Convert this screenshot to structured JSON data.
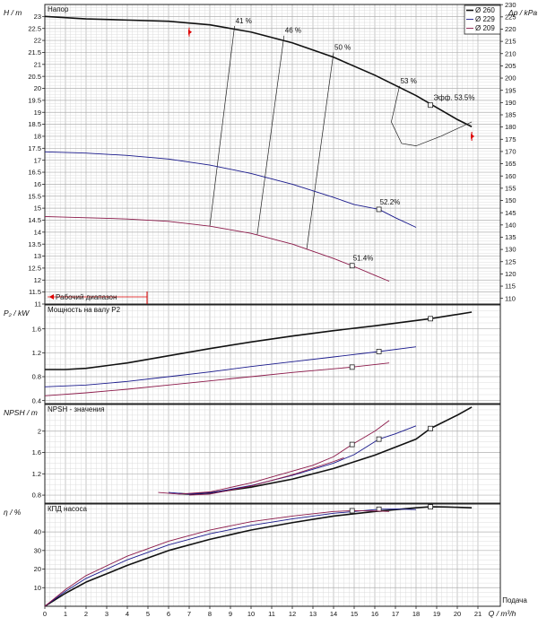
{
  "chart_data": {
    "type": "line",
    "x_axis": {
      "label": "Q / m³/h",
      "extra_label": "Подача",
      "range": [
        0,
        21
      ],
      "ticks": [
        0,
        1,
        2,
        3,
        4,
        5,
        6,
        7,
        8,
        9,
        10,
        11,
        12,
        13,
        14,
        15,
        16,
        17,
        18,
        19,
        20,
        21
      ]
    },
    "legend": {
      "placement": "top-right",
      "entries": [
        {
          "label": "Ø 260",
          "color": "#111111"
        },
        {
          "label": "Ø 229",
          "color": "#1a1a8c"
        },
        {
          "label": "Ø 209",
          "color": "#8c1a4a"
        }
      ]
    },
    "panels": [
      {
        "id": "head",
        "title": "Напор",
        "ylabel": "H / m",
        "ylim": [
          11,
          23.5
        ],
        "yticks": [
          11,
          11.5,
          12,
          12.5,
          13,
          13.5,
          14,
          14.5,
          15,
          15.5,
          16,
          16.5,
          17,
          17.5,
          18,
          18.5,
          19,
          19.5,
          20,
          20.5,
          21,
          21.5,
          22,
          22.5,
          23
        ],
        "right_axis": {
          "label": "Δp / kPa",
          "ticks": [
            110,
            115,
            120,
            125,
            130,
            135,
            140,
            145,
            150,
            155,
            160,
            165,
            170,
            175,
            180,
            185,
            190,
            195,
            200,
            205,
            210,
            215,
            220,
            225,
            230
          ]
        },
        "series": [
          {
            "name": "Ø 260",
            "color": "#111111",
            "width": 1.6,
            "x": [
              0,
              2,
              4,
              6,
              8,
              10,
              12,
              14,
              16,
              18,
              19,
              20,
              20.7
            ],
            "y": [
              23.0,
              22.9,
              22.85,
              22.8,
              22.65,
              22.35,
              21.9,
              21.3,
              20.55,
              19.7,
              19.2,
              18.7,
              18.4
            ],
            "marker": {
              "x": 18.7,
              "y": 19.3
            }
          },
          {
            "name": "Ø 229",
            "color": "#1a1a8c",
            "width": 0.9,
            "x": [
              0,
              2,
              4,
              6,
              8,
              10,
              12,
              14,
              15,
              16.2,
              17,
              18
            ],
            "y": [
              17.35,
              17.3,
              17.2,
              17.05,
              16.8,
              16.45,
              16.0,
              15.45,
              15.15,
              14.95,
              14.6,
              14.2
            ],
            "marker": {
              "x": 16.2,
              "y": 14.95
            }
          },
          {
            "name": "Ø 209",
            "color": "#8c1a4a",
            "width": 0.9,
            "x": [
              0,
              2,
              4,
              6,
              8,
              10,
              12,
              13,
              14,
              14.9,
              16,
              16.7
            ],
            "y": [
              14.65,
              14.6,
              14.55,
              14.45,
              14.25,
              13.95,
              13.5,
              13.2,
              12.9,
              12.6,
              12.2,
              11.95
            ],
            "marker": {
              "x": 14.9,
              "y": 12.6
            }
          }
        ],
        "iso_efficiency": [
          {
            "label": "41 %",
            "x": [
              9.2,
              8.0
            ],
            "y": [
              22.6,
              14.25
            ]
          },
          {
            "label": "46 %",
            "x": [
              11.6,
              10.3
            ],
            "y": [
              22.2,
              13.9
            ]
          },
          {
            "label": "50 %",
            "x": [
              14.0,
              12.7
            ],
            "y": [
              21.5,
              13.3
            ]
          },
          {
            "label": "53 %",
            "x": [
              17.2,
              16.8,
              17.3,
              18.0,
              19.2,
              20.7
            ],
            "y": [
              20.1,
              18.6,
              17.7,
              17.6,
              18.0,
              18.6
            ]
          }
        ],
        "annotations": [
          {
            "text": "41 %",
            "x": 9.2,
            "y": 22.6
          },
          {
            "text": "46 %",
            "x": 11.6,
            "y": 22.2
          },
          {
            "text": "50 %",
            "x": 14.0,
            "y": 21.5
          },
          {
            "text": "53 %",
            "x": 17.2,
            "y": 20.1
          },
          {
            "text": "Эфф.  53.5%",
            "x": 18.8,
            "y": 19.4
          },
          {
            "text": "52.2%",
            "x": 16.2,
            "y": 15.05
          },
          {
            "text": "51.4%",
            "x": 14.9,
            "y": 12.7
          }
        ],
        "range_label": "Рабочий диапазон",
        "range_markers": [
          7.0,
          20.7
        ]
      },
      {
        "id": "power",
        "title": "Мощность на валу P2",
        "ylabel": "P₂ / kW",
        "ylim": [
          0.35,
          2.0
        ],
        "yticks": [
          0.4,
          0.8,
          1.2,
          1.6
        ],
        "series": [
          {
            "name": "Ø 260",
            "color": "#111111",
            "width": 1.6,
            "x": [
              0,
              1,
              2,
              4,
              6,
              8,
              10,
              12,
              14,
              16,
              18.7,
              20.7
            ],
            "y": [
              0.92,
              0.92,
              0.94,
              1.03,
              1.15,
              1.27,
              1.38,
              1.48,
              1.57,
              1.65,
              1.77,
              1.88
            ],
            "marker": {
              "x": 18.7,
              "y": 1.77
            }
          },
          {
            "name": "Ø 229",
            "color": "#1a1a8c",
            "width": 0.9,
            "x": [
              0,
              2,
              4,
              6,
              8,
              10,
              12,
              14,
              16.2,
              18
            ],
            "y": [
              0.63,
              0.66,
              0.72,
              0.8,
              0.88,
              0.97,
              1.05,
              1.13,
              1.22,
              1.3
            ],
            "marker": {
              "x": 16.2,
              "y": 1.22
            }
          },
          {
            "name": "Ø 209",
            "color": "#8c1a4a",
            "width": 0.9,
            "x": [
              0,
              2,
              4,
              6,
              8,
              10,
              12,
              14.9,
              16.7
            ],
            "y": [
              0.48,
              0.53,
              0.59,
              0.66,
              0.73,
              0.8,
              0.87,
              0.96,
              1.03
            ],
            "marker": {
              "x": 14.9,
              "y": 0.96
            }
          }
        ]
      },
      {
        "id": "npsh",
        "title": "NPSH - значения",
        "ylabel": "NPSH / m",
        "ylim": [
          0.65,
          2.5
        ],
        "yticks": [
          0.8,
          1.2,
          1.6,
          2.0
        ],
        "series": [
          {
            "name": "Ø 260",
            "color": "#111111",
            "width": 1.6,
            "x": [
              6.5,
              7,
              8,
              10,
              12,
              14,
              16,
              18,
              18.7,
              20,
              20.7
            ],
            "y": [
              0.83,
              0.82,
              0.84,
              0.95,
              1.1,
              1.3,
              1.55,
              1.85,
              2.05,
              2.3,
              2.45
            ],
            "marker": {
              "x": 18.7,
              "y": 2.05
            }
          },
          {
            "name": "Ø 229",
            "color": "#1a1a8c",
            "width": 0.9,
            "x": [
              6,
              7,
              8,
              10,
              12,
              14,
              15,
              16.2,
              17,
              18
            ],
            "y": [
              0.85,
              0.82,
              0.84,
              0.98,
              1.17,
              1.4,
              1.56,
              1.85,
              1.95,
              2.1
            ],
            "marker": {
              "x": 16.2,
              "y": 1.85
            }
          },
          {
            "name": "Ø 209",
            "color": "#8c1a4a",
            "width": 0.9,
            "x": [
              5.5,
              6.5,
              8,
              10,
              12,
              13,
              14,
              14.9,
              16,
              16.7
            ],
            "y": [
              0.85,
              0.82,
              0.86,
              1.03,
              1.25,
              1.36,
              1.52,
              1.75,
              2.0,
              2.2
            ],
            "marker": {
              "x": 14.9,
              "y": 1.75
            }
          },
          {
            "name": "Ø 209 (2)",
            "color": "#8c1a4a",
            "width": 0.9,
            "x": [
              7,
              8,
              10,
              12,
              14,
              14.5
            ],
            "y": [
              0.8,
              0.82,
              0.97,
              1.18,
              1.43,
              1.5
            ]
          }
        ]
      },
      {
        "id": "efficiency",
        "title": "КПД насоса",
        "ylabel": "η / %",
        "ylim": [
          0,
          55
        ],
        "yticks": [
          10,
          20,
          30,
          40
        ],
        "series": [
          {
            "name": "Ø 260",
            "color": "#111111",
            "width": 1.6,
            "x": [
              0,
              1,
              2,
              4,
              6,
              8,
              10,
              12,
              14,
              16,
              18,
              18.7,
              19.5,
              20.7
            ],
            "y": [
              0,
              7,
              13,
              22,
              30,
              36,
              41,
              45,
              48.5,
              51,
              53,
              53.5,
              53.4,
              53
            ],
            "marker": {
              "x": 18.7,
              "y": 53.5
            }
          },
          {
            "name": "Ø 229",
            "color": "#1a1a8c",
            "width": 0.9,
            "x": [
              0,
              1,
              2,
              4,
              6,
              8,
              10,
              12,
              14,
              16.2,
              17,
              18
            ],
            "y": [
              0,
              8,
              15,
              25,
              33,
              39,
              43.5,
              47,
              50,
              52.2,
              52.3,
              52.0
            ],
            "marker": {
              "x": 16.2,
              "y": 52.2
            }
          },
          {
            "name": "Ø 209",
            "color": "#8c1a4a",
            "width": 0.9,
            "x": [
              0,
              1,
              2,
              4,
              6,
              8,
              10,
              12,
              14,
              14.9,
              16,
              16.7
            ],
            "y": [
              0,
              9,
              16.5,
              27,
              35,
              41,
              45.5,
              48.5,
              51,
              51.4,
              51.3,
              51.0
            ],
            "marker": {
              "x": 14.9,
              "y": 51.4
            }
          }
        ]
      }
    ]
  }
}
